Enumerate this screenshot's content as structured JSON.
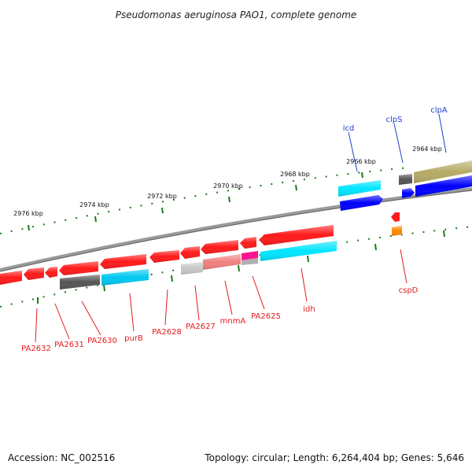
{
  "title": "Pseudomonas aeruginosa PAO1, complete genome",
  "footer": {
    "accession": "Accession: NC_002516",
    "topology": "Topology: circular; Length: 6,264,404 bp; Genes: 5,646"
  },
  "ticks": [
    "2976 kbp",
    "2974 kbp",
    "2972 kbp",
    "2970 kbp",
    "2968 kbp",
    "2966 kbp",
    "2964 kbp"
  ],
  "labels_top": [
    "icd",
    "clpS",
    "clpA"
  ],
  "labels_bottom": [
    "PA2632",
    "PA2631",
    "PA2630",
    "purB",
    "PA2628",
    "PA2627",
    "mnmA",
    "PA2625",
    "idh",
    "cspD"
  ],
  "colors": {
    "red": "#ff1a1a",
    "dark_gray": "#555555",
    "cyan": "#00e5ff",
    "blue": "#0000ff",
    "olive": "#b5ab66",
    "light_gray": "#c8c8c8",
    "pink": "#f08080",
    "magenta": "#ff1493",
    "orange": "#ff8800",
    "tick_green": "#1a7a1a",
    "label_red": "#e41a1c",
    "label_blue": "#1f3fd6"
  }
}
